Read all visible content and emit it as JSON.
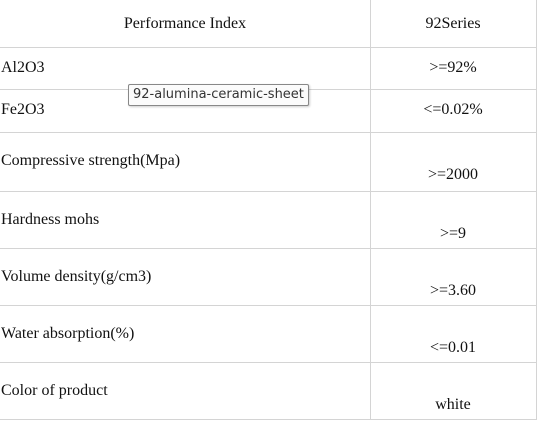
{
  "table": {
    "header": [
      "Performance Index",
      "92Series"
    ],
    "rows": [
      [
        "Al2O3",
        ">=92%"
      ],
      [
        "Fe2O3",
        "<=0.02%"
      ],
      [
        "Compressive strength(Mpa)",
        ">=2000"
      ],
      [
        "Hardness mohs",
        ">=9"
      ],
      [
        "Volume density(g/cm3)",
        ">=3.60"
      ],
      [
        "Water absorption(%)",
        "<=0.01"
      ],
      [
        "Color of product",
        "white"
      ]
    ]
  },
  "tooltip": "92-alumina-ceramic-sheet"
}
